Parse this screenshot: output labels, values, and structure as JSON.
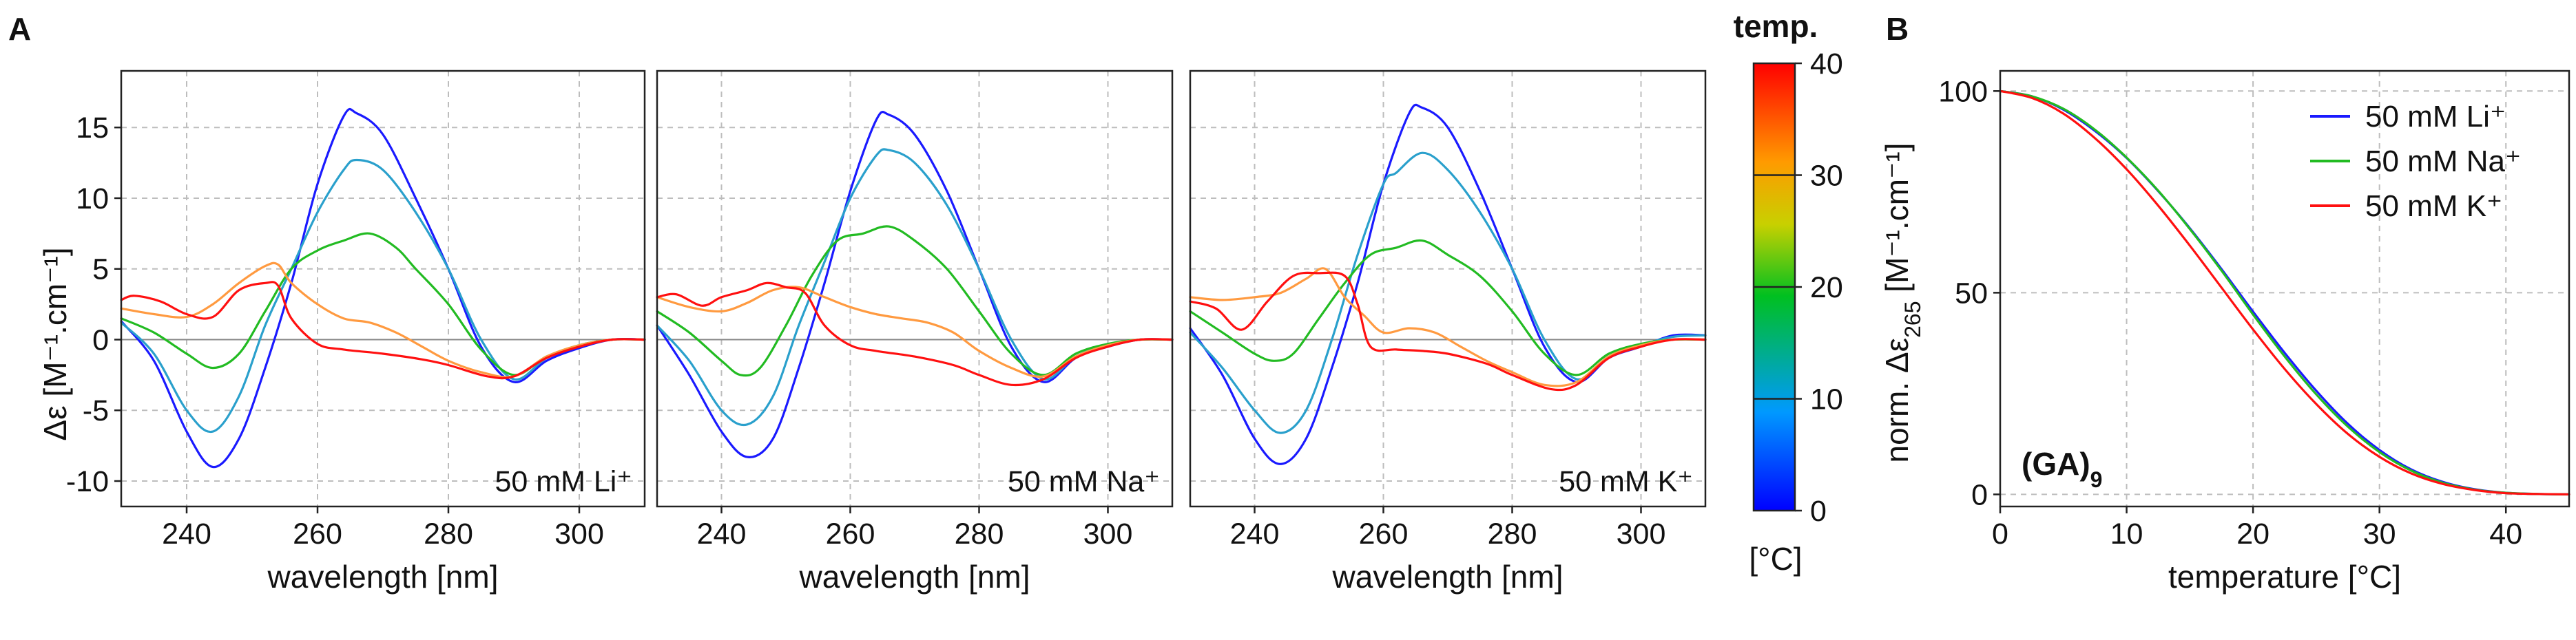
{
  "panel_labels": {
    "a": "A",
    "b": "B"
  },
  "colorbar": {
    "title": "temp.",
    "unit": "[°C]",
    "min": 0,
    "max": 40,
    "ticks": [
      "0",
      "10",
      "20",
      "30",
      "40"
    ],
    "colors": [
      "#0000ff",
      "#0099ff",
      "#00c020",
      "#c8d000",
      "#ff9a00",
      "#ff0000"
    ]
  },
  "chart_data": [
    {
      "type": "line",
      "panel": "A",
      "inner_label": "50 mM Li⁺",
      "xlabel": "wavelength [nm]",
      "ylabel": "Δε [M⁻¹.cm⁻¹]",
      "xlim": [
        230,
        310
      ],
      "ylim": [
        -11.8,
        19
      ],
      "xticks": [
        "240",
        "260",
        "280",
        "300"
      ],
      "yticks": [
        "-10",
        "-5",
        "0",
        "5",
        "10",
        "15"
      ],
      "series": [
        {
          "temperature": 5,
          "color": "#1a1aff",
          "x": [
            230,
            235,
            240,
            244,
            248,
            252,
            256,
            260,
            264,
            266,
            270,
            275,
            280,
            285,
            290,
            295,
            300,
            305,
            310
          ],
          "y": [
            1.3,
            -1.5,
            -6.5,
            -9,
            -7,
            -2,
            4,
            11,
            15.8,
            16,
            14.5,
            10,
            5,
            -0.5,
            -3,
            -1.5,
            -0.6,
            0,
            0
          ]
        },
        {
          "temperature": 10,
          "color": "#2aa0cc",
          "x": [
            230,
            235,
            240,
            244,
            248,
            252,
            256,
            260,
            264,
            266,
            270,
            275,
            280,
            285,
            290,
            295,
            300,
            305,
            310
          ],
          "y": [
            1.2,
            -1,
            -5,
            -6.5,
            -4,
            1,
            5,
            9,
            12,
            12.7,
            12,
            9,
            5,
            0,
            -2.8,
            -1.3,
            -0.4,
            0,
            0
          ]
        },
        {
          "temperature": 20,
          "color": "#22bb22",
          "x": [
            230,
            235,
            240,
            244,
            248,
            252,
            256,
            260,
            264,
            268,
            272,
            275,
            280,
            285,
            290,
            295,
            300,
            305,
            310
          ],
          "y": [
            1.5,
            0.5,
            -1,
            -2,
            -1,
            2,
            5,
            6.3,
            7,
            7.5,
            6.5,
            5,
            2.5,
            -0.7,
            -2.5,
            -1.2,
            -0.4,
            0,
            0
          ]
        },
        {
          "temperature": 30,
          "color": "#ff9a40",
          "x": [
            230,
            235,
            240,
            244,
            248,
            252,
            254,
            256,
            260,
            264,
            268,
            272,
            276,
            280,
            285,
            290,
            295,
            300,
            305,
            310
          ],
          "y": [
            2.2,
            1.8,
            1.6,
            2.5,
            4,
            5.2,
            5.3,
            4,
            2.5,
            1.5,
            1.2,
            0.5,
            -0.5,
            -1.5,
            -2.3,
            -2.6,
            -1.2,
            -0.4,
            0,
            0
          ]
        },
        {
          "temperature": 40,
          "color": "#ff1010",
          "x": [
            230,
            232,
            236,
            240,
            244,
            248,
            252,
            254,
            256,
            260,
            264,
            270,
            276,
            280,
            286,
            290,
            295,
            300,
            305,
            310
          ],
          "y": [
            2.8,
            3.1,
            2.7,
            1.8,
            1.6,
            3.5,
            4,
            3.8,
            1.5,
            -0.3,
            -0.7,
            -1,
            -1.4,
            -1.8,
            -2.6,
            -2.6,
            -1.3,
            -0.5,
            0,
            0
          ]
        }
      ]
    },
    {
      "type": "line",
      "panel": "A",
      "inner_label": "50 mM Na⁺",
      "xlabel": "wavelength [nm]",
      "ylabel": "",
      "xlim": [
        230,
        310
      ],
      "ylim": [
        -11.8,
        19
      ],
      "xticks": [
        "240",
        "260",
        "280",
        "300"
      ],
      "yticks": [],
      "series": [
        {
          "temperature": 5,
          "color": "#1a1aff",
          "x": [
            230,
            235,
            240,
            244,
            248,
            252,
            256,
            260,
            264,
            266,
            270,
            275,
            280,
            285,
            290,
            295,
            300,
            305,
            310
          ],
          "y": [
            1,
            -2.5,
            -6.5,
            -8.3,
            -7,
            -2,
            4,
            10.5,
            15.5,
            15.9,
            14.5,
            10.5,
            5,
            -0.5,
            -3,
            -1.3,
            -0.5,
            0,
            0
          ]
        },
        {
          "temperature": 10,
          "color": "#2aa0cc",
          "x": [
            230,
            235,
            240,
            244,
            248,
            252,
            256,
            260,
            264,
            266,
            270,
            275,
            280,
            285,
            290,
            295,
            300,
            305,
            310
          ],
          "y": [
            1,
            -1.5,
            -5,
            -6,
            -4,
            1,
            5.5,
            10,
            13,
            13.4,
            12.5,
            9.5,
            5,
            0,
            -2.8,
            -1.2,
            -0.4,
            0,
            0
          ]
        },
        {
          "temperature": 20,
          "color": "#22bb22",
          "x": [
            230,
            235,
            240,
            243,
            246,
            250,
            254,
            258,
            262,
            266,
            270,
            275,
            280,
            285,
            290,
            295,
            300,
            305,
            310
          ],
          "y": [
            2,
            0.5,
            -1.5,
            -2.5,
            -2,
            1,
            4.5,
            7,
            7.5,
            8,
            7,
            5,
            2,
            -1,
            -2.5,
            -1,
            -0.3,
            0,
            0
          ]
        },
        {
          "temperature": 30,
          "color": "#ff9a40",
          "x": [
            230,
            235,
            240,
            244,
            248,
            252,
            256,
            260,
            264,
            268,
            272,
            276,
            280,
            285,
            290,
            295,
            300,
            305,
            310
          ],
          "y": [
            3,
            2.3,
            2,
            2.6,
            3.5,
            3.7,
            3,
            2.3,
            1.8,
            1.5,
            1.2,
            0.5,
            -0.8,
            -2,
            -2.6,
            -1.2,
            -0.4,
            0,
            0
          ]
        },
        {
          "temperature": 40,
          "color": "#ff1010",
          "x": [
            230,
            233,
            237,
            240,
            244,
            247,
            250,
            253,
            256,
            260,
            264,
            270,
            276,
            280,
            285,
            290,
            295,
            300,
            305,
            310
          ],
          "y": [
            3,
            3.2,
            2.4,
            3,
            3.5,
            4,
            3.7,
            3.3,
            1,
            -0.4,
            -0.8,
            -1.2,
            -1.8,
            -2.5,
            -3.2,
            -2.8,
            -1.3,
            -0.5,
            0,
            0
          ]
        }
      ]
    },
    {
      "type": "line",
      "panel": "A",
      "inner_label": "50 mM K⁺",
      "xlabel": "wavelength [nm]",
      "ylabel": "",
      "xlim": [
        230,
        310
      ],
      "ylim": [
        -11.8,
        19
      ],
      "xticks": [
        "240",
        "260",
        "280",
        "300"
      ],
      "yticks": [],
      "series": [
        {
          "temperature": 5,
          "color": "#1a1aff",
          "x": [
            230,
            235,
            240,
            244,
            248,
            252,
            256,
            260,
            264,
            266,
            270,
            275,
            280,
            285,
            290,
            295,
            300,
            305,
            310
          ],
          "y": [
            0.8,
            -2.5,
            -7,
            -8.8,
            -7,
            -2,
            4,
            11,
            16,
            16.4,
            15,
            10.5,
            5,
            -0.5,
            -3,
            -1.3,
            -0.5,
            0.3,
            0.3
          ]
        },
        {
          "temperature": 10,
          "color": "#2aa0cc",
          "x": [
            230,
            235,
            240,
            244,
            248,
            252,
            256,
            260,
            262,
            266,
            270,
            275,
            280,
            285,
            290,
            295,
            300,
            305,
            310
          ],
          "y": [
            0.5,
            -2,
            -5,
            -6.6,
            -5,
            0,
            6,
            11,
            11.8,
            13.2,
            12,
            9,
            5,
            0,
            -2.8,
            -1.2,
            -0.4,
            0.2,
            0.3
          ]
        },
        {
          "temperature": 20,
          "color": "#22bb22",
          "x": [
            230,
            235,
            240,
            243,
            246,
            250,
            254,
            258,
            262,
            266,
            270,
            275,
            280,
            285,
            290,
            295,
            300,
            305,
            310
          ],
          "y": [
            2,
            0.5,
            -1,
            -1.5,
            -1,
            1.5,
            4,
            6,
            6.5,
            7,
            6,
            4.5,
            2,
            -1,
            -2.5,
            -1,
            -0.3,
            0,
            0
          ]
        },
        {
          "temperature": 30,
          "color": "#ff9a40",
          "x": [
            230,
            235,
            240,
            244,
            248,
            251,
            254,
            257,
            260,
            264,
            268,
            272,
            276,
            280,
            285,
            290,
            295,
            300,
            305,
            310
          ],
          "y": [
            3,
            2.8,
            3,
            3.3,
            4.3,
            5,
            3,
            1.7,
            0.5,
            0.8,
            0.5,
            -0.5,
            -1.5,
            -2.3,
            -3.2,
            -3,
            -1.2,
            -0.4,
            0,
            0
          ]
        },
        {
          "temperature": 40,
          "color": "#ff1010",
          "x": [
            230,
            234,
            238,
            242,
            246,
            250,
            254,
            256,
            258,
            262,
            266,
            270,
            276,
            280,
            286,
            290,
            295,
            300,
            305,
            310
          ],
          "y": [
            2.7,
            2.2,
            0.7,
            2.7,
            4.5,
            4.7,
            4.5,
            2.5,
            -0.5,
            -0.7,
            -0.8,
            -1,
            -1.7,
            -2.5,
            -3.5,
            -3.2,
            -1.3,
            -0.5,
            0,
            0
          ]
        }
      ]
    },
    {
      "type": "line",
      "panel": "B",
      "inner_label": "(GA)",
      "inner_label_sub": "9",
      "xlabel": "temperature [°C]",
      "ylabel": "norm. Δε",
      "ylabel_sub": "265",
      "ylabel_unit": " [M⁻¹.cm⁻¹]",
      "xlim": [
        0,
        45
      ],
      "ylim": [
        -3,
        105
      ],
      "xticks": [
        "0",
        "10",
        "20",
        "30",
        "40"
      ],
      "yticks": [
        "0",
        "50",
        "100"
      ],
      "series": [
        {
          "name": "50 mM Li⁺",
          "color": "#1a1aff",
          "x": [
            0,
            2.5,
            5,
            7.5,
            10,
            12.5,
            15,
            17.5,
            20,
            22.5,
            25,
            27.5,
            30,
            32.5,
            35,
            37.5,
            40,
            42.5,
            45
          ],
          "y": [
            100,
            98.7,
            95.4,
            90.1,
            83.4,
            75.2,
            66,
            55.9,
            45.3,
            35.1,
            25.7,
            17.5,
            11,
            6.2,
            3.1,
            1.3,
            0.4,
            0.1,
            0
          ]
        },
        {
          "name": "50 mM Na⁺",
          "color": "#22bb22",
          "x": [
            0,
            2.5,
            5,
            7.5,
            10,
            12.5,
            15,
            17.5,
            20,
            22.5,
            25,
            27.5,
            30,
            32.5,
            35,
            37.5,
            40,
            42.5,
            45
          ],
          "y": [
            100,
            98.7,
            95.6,
            90.4,
            83.5,
            75.3,
            65.8,
            55.5,
            44.6,
            34.2,
            24.8,
            16.8,
            10.5,
            5.9,
            2.9,
            1.2,
            0.4,
            0.1,
            0
          ]
        },
        {
          "name": "50 mM K⁺",
          "color": "#ff1010",
          "x": [
            0,
            2.5,
            5,
            7.5,
            10,
            12.5,
            15,
            17.5,
            20,
            22.5,
            25,
            27.5,
            30,
            32.5,
            35,
            37.5,
            40,
            42.5,
            45
          ],
          "y": [
            100,
            98.3,
            94.4,
            88.3,
            80.6,
            71.6,
            61.7,
            51.3,
            40.9,
            31.1,
            22.4,
            15,
            9.3,
            5.2,
            2.6,
            1.1,
            0.3,
            0.1,
            0
          ]
        }
      ],
      "legend_position": "top-right"
    }
  ]
}
